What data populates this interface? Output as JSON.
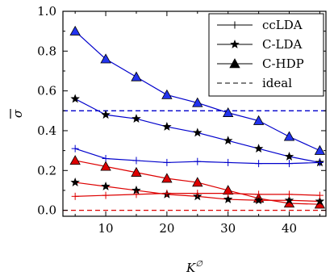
{
  "chart_data": {
    "type": "line",
    "xlabel": "K^∅",
    "ylabel": "σ̄",
    "xlim": [
      3,
      46
    ],
    "ylim": [
      -0.03,
      1.0
    ],
    "x_ticks": [
      10,
      20,
      30,
      40
    ],
    "y_ticks": [
      0.0,
      0.2,
      0.4,
      0.6,
      0.8,
      1.0
    ],
    "y_tick_labels": [
      "0.0",
      "0.2",
      "0.4",
      "0.6",
      "0.8",
      "1.0"
    ],
    "x": [
      5,
      10,
      15,
      20,
      25,
      30,
      35,
      40,
      45
    ],
    "legend_position": "top-right",
    "legend": [
      {
        "label": "ccLDA",
        "marker": "plus",
        "style": "solid"
      },
      {
        "label": "C-LDA",
        "marker": "star",
        "style": "solid"
      },
      {
        "label": "C-HDP",
        "marker": "triangle",
        "style": "solid"
      },
      {
        "label": "ideal",
        "marker": "none",
        "style": "dashed"
      }
    ],
    "series": [
      {
        "group": "blue",
        "color": "#0000cc",
        "marker": "triangle",
        "fill": "#2233ee",
        "values": [
          0.9,
          0.76,
          0.67,
          0.58,
          0.54,
          0.49,
          0.45,
          0.37,
          0.3
        ]
      },
      {
        "group": "blue",
        "color": "#0000cc",
        "marker": "star",
        "values": [
          0.56,
          0.48,
          0.46,
          0.42,
          0.39,
          0.35,
          0.31,
          0.27,
          0.24
        ]
      },
      {
        "group": "blue",
        "color": "#0000cc",
        "marker": "plus",
        "values": [
          0.31,
          0.26,
          0.25,
          0.24,
          0.245,
          0.24,
          0.235,
          0.235,
          0.24
        ]
      },
      {
        "group": "red",
        "color": "#dd0000",
        "marker": "triangle",
        "fill": "#dd0000",
        "values": [
          0.25,
          0.22,
          0.19,
          0.16,
          0.14,
          0.1,
          0.06,
          0.035,
          0.03
        ]
      },
      {
        "group": "red",
        "color": "#dd0000",
        "marker": "star",
        "values": [
          0.14,
          0.12,
          0.1,
          0.08,
          0.07,
          0.055,
          0.05,
          0.05,
          0.045
        ]
      },
      {
        "group": "red",
        "color": "#dd0000",
        "marker": "plus",
        "values": [
          0.07,
          0.075,
          0.08,
          0.085,
          0.085,
          0.085,
          0.08,
          0.08,
          0.075
        ]
      }
    ],
    "reference_lines": [
      {
        "group": "blue",
        "y": 0.5,
        "color": "#0000cc",
        "style": "dashed"
      },
      {
        "group": "red",
        "y": 0.0,
        "color": "#dd0000",
        "style": "dashed"
      }
    ]
  }
}
